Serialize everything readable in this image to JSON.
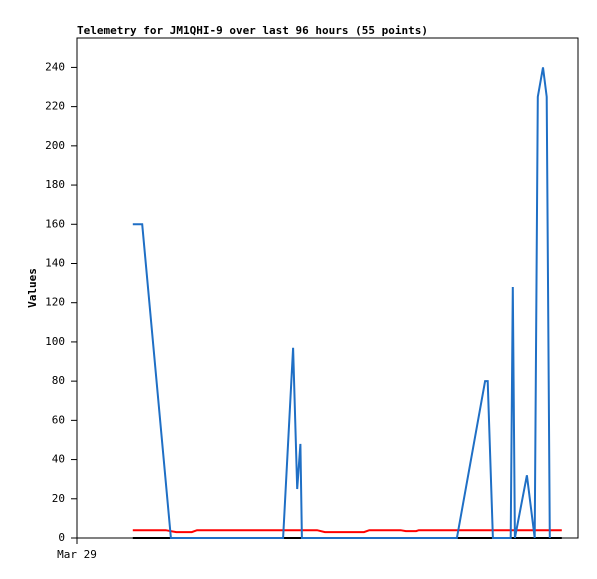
{
  "chart_data": {
    "type": "line",
    "title": "Telemetry for JM1QHI-9 over last 96 hours (55 points)",
    "y_label": "Values",
    "xlim": [
      0,
      96
    ],
    "xticks": [
      {
        "value": 0,
        "label": "Mar 29"
      }
    ],
    "ylim": [
      0,
      255
    ],
    "yticks": [
      0,
      20,
      40,
      60,
      80,
      100,
      120,
      140,
      160,
      180,
      200,
      220,
      240
    ],
    "grid": false,
    "series": [
      {
        "color": "#000000",
        "x": [
          10.7,
          92.9
        ],
        "values": [
          0,
          0
        ]
      },
      {
        "color": "#ff0000",
        "x": [
          10.7,
          17,
          19,
          22,
          23,
          46,
          47.5,
          55,
          56,
          62,
          63,
          65,
          65.5,
          92.9
        ],
        "values": [
          4,
          4,
          3,
          3,
          4,
          4,
          3,
          3,
          4,
          4,
          3.5,
          3.5,
          4,
          4
        ]
      },
      {
        "color": "#1f6fc5",
        "x": [
          10.7,
          12.5,
          18,
          39.5,
          41.4,
          42.2,
          42.8,
          43.1,
          72.8,
          78.2,
          78.7,
          79.7,
          83.1,
          83.5,
          83.9,
          86.2,
          87.7,
          88.3,
          89.3,
          90,
          90.6
        ],
        "values": [
          160,
          160,
          0,
          0,
          97,
          25,
          48,
          0,
          0,
          80,
          80,
          0,
          0,
          128,
          0,
          32,
          0,
          225,
          240,
          225,
          0
        ]
      }
    ]
  }
}
